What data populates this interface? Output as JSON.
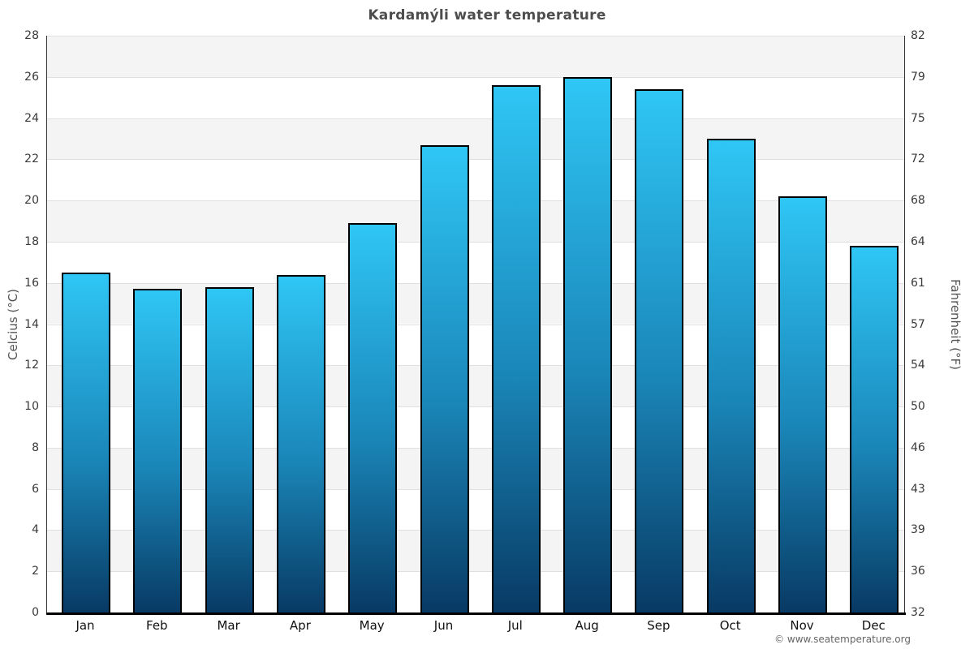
{
  "page": {
    "title": "Kardamýli water temperature",
    "footer": "© www.seatemperature.org"
  },
  "chart_data": {
    "type": "bar",
    "title": "Kardamýli water temperature",
    "categories": [
      "Jan",
      "Feb",
      "Mar",
      "Apr",
      "May",
      "Jun",
      "Jul",
      "Aug",
      "Sep",
      "Oct",
      "Nov",
      "Dec"
    ],
    "values": [
      16.5,
      15.7,
      15.8,
      16.4,
      18.9,
      22.7,
      25.6,
      26.0,
      25.4,
      23.0,
      20.2,
      17.8
    ],
    "ylabel": "Celcius (°C)",
    "ylabel_right": "Fahrenheit (°F)",
    "xlabel": "",
    "ylim": [
      0,
      28
    ],
    "yticks": [
      0,
      2,
      4,
      6,
      8,
      10,
      12,
      14,
      16,
      18,
      20,
      22,
      24,
      26,
      28
    ],
    "yticks_right_labels": [
      "32",
      "36",
      "39",
      "43",
      "46",
      "50",
      "54",
      "57",
      "61",
      "64",
      "68",
      "72",
      "75",
      "79",
      "82"
    ],
    "grid": "horizontal-bands-alternating",
    "legend_position": "none",
    "colors": {
      "bar_gradient_top": "#2fc6f5",
      "bar_gradient_bottom": "#083a64",
      "bar_border": "#000000",
      "band_gray": "#f4f4f4",
      "band_white": "#ffffff",
      "gridline": "#e0e0e0",
      "axis_line": "#000000",
      "title_text": "#4d4d4d",
      "tick_text": "#3a3a3a",
      "footer_text": "#666666"
    }
  }
}
